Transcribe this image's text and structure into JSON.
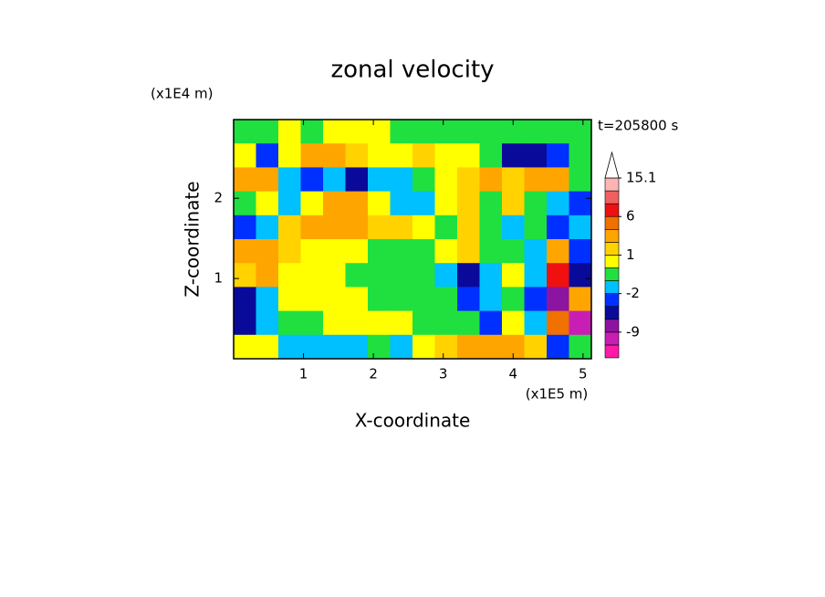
{
  "chart_data": {
    "type": "contour",
    "title": "zonal velocity",
    "xlabel": "X-coordinate",
    "ylabel": "Z-coordinate",
    "xunit": "(x1E5 m)",
    "yunit": "(x1E4 m)",
    "time_label": "t=205800 s",
    "xlim": [
      0,
      5.12
    ],
    "ylim": [
      0,
      2.98
    ],
    "xticks": [
      1,
      2,
      3,
      4,
      5
    ],
    "yticks": [
      1,
      2
    ],
    "x": [
      0.16,
      0.48,
      0.8,
      1.12,
      1.44,
      1.76,
      2.08,
      2.4,
      2.72,
      3.04,
      3.36,
      3.68,
      4.0,
      4.32,
      4.64,
      4.96
    ],
    "y": [
      2.831,
      2.533,
      2.235,
      1.937,
      1.639,
      1.341,
      1.043,
      0.745,
      0.447,
      0.149
    ],
    "z": [
      [
        -0.5,
        -0.5,
        0.5,
        -0.5,
        0.5,
        0.5,
        0.5,
        -0.5,
        -0.5,
        -0.5,
        -0.5,
        -0.5,
        -0.5,
        -0.5,
        -0.5,
        -0.5
      ],
      [
        0.5,
        -3,
        0.5,
        3,
        3,
        1.5,
        0.5,
        0.5,
        1.5,
        0.5,
        0.5,
        -0.5,
        -5,
        -5,
        -3,
        -0.5
      ],
      [
        3,
        3,
        -1.5,
        -3,
        -1.5,
        -5,
        -1.5,
        -1.5,
        -0.5,
        0.5,
        1.5,
        3,
        1.5,
        3,
        3,
        -0.5
      ],
      [
        -0.5,
        0.5,
        -1.5,
        0.5,
        3,
        3,
        0.5,
        -1.5,
        -1.5,
        0.5,
        1.5,
        -0.5,
        1.5,
        -0.5,
        -1.5,
        -3
      ],
      [
        -3,
        -1.5,
        1.5,
        3,
        3,
        3,
        1.5,
        1.5,
        0.5,
        -0.5,
        1.5,
        -0.5,
        -1.5,
        -0.5,
        -3,
        -1.5
      ],
      [
        3,
        3,
        1.5,
        0.5,
        0.5,
        0.5,
        -0.5,
        -0.5,
        -0.5,
        0.5,
        1.5,
        -0.5,
        -0.5,
        -1.5,
        3,
        -3
      ],
      [
        1.5,
        3,
        0.5,
        0.5,
        0.5,
        -0.5,
        -0.5,
        -0.5,
        -0.5,
        -1.5,
        -5,
        -1.5,
        0.5,
        -1.5,
        6,
        -5
      ],
      [
        -5,
        -1.5,
        0.5,
        0.5,
        0.5,
        0.5,
        -0.5,
        -0.5,
        -0.5,
        -0.5,
        -3,
        -1.5,
        -0.5,
        -3,
        -7,
        3
      ],
      [
        -5,
        -1.5,
        -0.5,
        -0.5,
        0.5,
        0.5,
        0.5,
        0.5,
        -0.5,
        -0.5,
        -0.5,
        -3,
        0.5,
        -1.5,
        5,
        -10
      ],
      [
        0.5,
        0.5,
        -1.5,
        -1.5,
        -1.5,
        -1.5,
        -0.5,
        -1.5,
        0.5,
        1.5,
        3,
        3,
        3,
        1.5,
        -3,
        -0.5
      ]
    ],
    "levels": [
      -15,
      -12,
      -9,
      -6,
      -4,
      -2,
      -1,
      0,
      1,
      2,
      4,
      6,
      9,
      12,
      15.1
    ],
    "level_colors": [
      "#ff1aa8",
      "#c81eb4",
      "#8c14a0",
      "#0a0a9a",
      "#0030ff",
      "#00c0ff",
      "#20e040",
      "#ffff00",
      "#ffd200",
      "#ffa500",
      "#f07000",
      "#f01010",
      "#f06060",
      "#ffb4b4"
    ],
    "colorbar_ticks": [
      15.1,
      6,
      1,
      -2,
      -9
    ]
  }
}
